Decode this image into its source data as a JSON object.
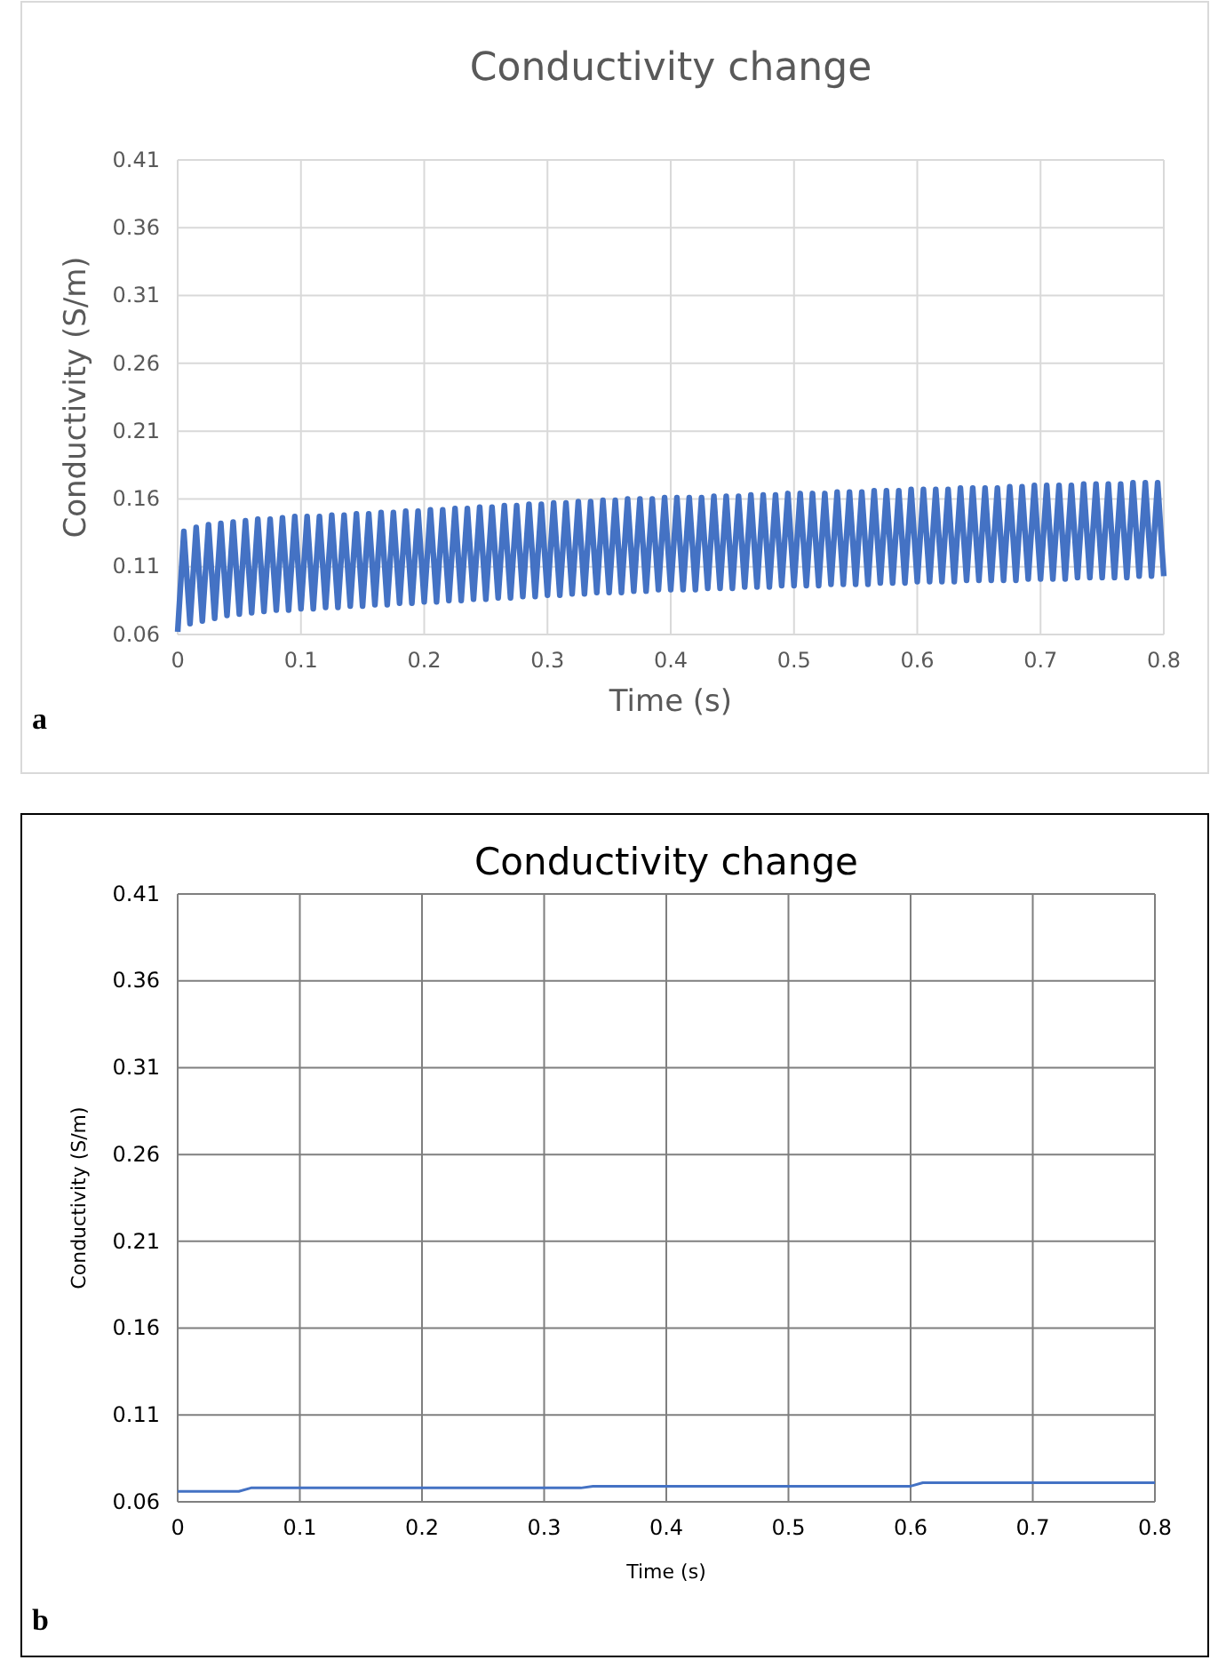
{
  "chart_data": [
    {
      "type": "line",
      "title": "Conductivity change",
      "xlabel": "Time (s)",
      "ylabel": "Conductivity (S/m)",
      "annotations": [
        "a"
      ],
      "xlim": [
        0,
        0.8
      ],
      "xticks": [
        0,
        0.1,
        0.2,
        0.3,
        0.4,
        0.5,
        0.6,
        0.7,
        0.8
      ],
      "ylim": [
        0.06,
        0.41
      ],
      "yticks": [
        0.06,
        0.11,
        0.16,
        0.21,
        0.26,
        0.31,
        0.36,
        0.41
      ],
      "grid": true,
      "series": [
        {
          "color": "#4472c4",
          "x": [
            0,
            0.005,
            0.01,
            0.015,
            0.02,
            0.025,
            0.03,
            0.035,
            0.04,
            0.045,
            0.05,
            0.055,
            0.06,
            0.065,
            0.07,
            0.075,
            0.08,
            0.085,
            0.09,
            0.095,
            0.1,
            0.105,
            0.11,
            0.115,
            0.12,
            0.125,
            0.13,
            0.135,
            0.14,
            0.145,
            0.15,
            0.155,
            0.16,
            0.165,
            0.17,
            0.175,
            0.18,
            0.185,
            0.19,
            0.195,
            0.2,
            0.205,
            0.21,
            0.215,
            0.22,
            0.225,
            0.23,
            0.235,
            0.24,
            0.245,
            0.25,
            0.255,
            0.26,
            0.265,
            0.27,
            0.275,
            0.28,
            0.285,
            0.29,
            0.295,
            0.3,
            0.305,
            0.31,
            0.315,
            0.32,
            0.325,
            0.33,
            0.335,
            0.34,
            0.345,
            0.35,
            0.355,
            0.36,
            0.365,
            0.37,
            0.375,
            0.38,
            0.385,
            0.39,
            0.395,
            0.4,
            0.405,
            0.41,
            0.415,
            0.42,
            0.425,
            0.43,
            0.435,
            0.44,
            0.445,
            0.45,
            0.455,
            0.46,
            0.465,
            0.47,
            0.475,
            0.48,
            0.485,
            0.49,
            0.495,
            0.5,
            0.505,
            0.51,
            0.515,
            0.52,
            0.525,
            0.53,
            0.535,
            0.54,
            0.545,
            0.55,
            0.555,
            0.56,
            0.565,
            0.57,
            0.575,
            0.58,
            0.585,
            0.59,
            0.595,
            0.6,
            0.605,
            0.61,
            0.615,
            0.62,
            0.625,
            0.63,
            0.635,
            0.64,
            0.645,
            0.65,
            0.655,
            0.66,
            0.665,
            0.67,
            0.675,
            0.68,
            0.685,
            0.69,
            0.695,
            0.7,
            0.705,
            0.71,
            0.715,
            0.72,
            0.725,
            0.73,
            0.735,
            0.74,
            0.745,
            0.75,
            0.755,
            0.76,
            0.765,
            0.77,
            0.775,
            0.78,
            0.785,
            0.79,
            0.795,
            0.8
          ],
          "values": [
            0.062,
            0.136,
            0.068,
            0.139,
            0.07,
            0.141,
            0.072,
            0.142,
            0.074,
            0.143,
            0.075,
            0.144,
            0.076,
            0.145,
            0.077,
            0.145,
            0.078,
            0.146,
            0.078,
            0.147,
            0.079,
            0.147,
            0.079,
            0.147,
            0.08,
            0.148,
            0.08,
            0.148,
            0.081,
            0.149,
            0.081,
            0.149,
            0.082,
            0.15,
            0.082,
            0.15,
            0.083,
            0.151,
            0.083,
            0.151,
            0.084,
            0.152,
            0.084,
            0.152,
            0.085,
            0.153,
            0.085,
            0.153,
            0.086,
            0.154,
            0.086,
            0.154,
            0.087,
            0.155,
            0.087,
            0.155,
            0.088,
            0.156,
            0.088,
            0.156,
            0.089,
            0.157,
            0.089,
            0.157,
            0.09,
            0.158,
            0.09,
            0.158,
            0.091,
            0.159,
            0.091,
            0.159,
            0.091,
            0.16,
            0.092,
            0.16,
            0.092,
            0.16,
            0.093,
            0.161,
            0.093,
            0.161,
            0.093,
            0.161,
            0.093,
            0.161,
            0.094,
            0.162,
            0.094,
            0.162,
            0.094,
            0.162,
            0.095,
            0.163,
            0.095,
            0.163,
            0.095,
            0.163,
            0.096,
            0.164,
            0.096,
            0.164,
            0.096,
            0.164,
            0.096,
            0.164,
            0.097,
            0.165,
            0.097,
            0.165,
            0.097,
            0.165,
            0.097,
            0.166,
            0.098,
            0.166,
            0.098,
            0.166,
            0.098,
            0.167,
            0.099,
            0.167,
            0.099,
            0.167,
            0.099,
            0.167,
            0.099,
            0.168,
            0.1,
            0.168,
            0.1,
            0.168,
            0.1,
            0.168,
            0.1,
            0.169,
            0.1,
            0.169,
            0.101,
            0.17,
            0.101,
            0.17,
            0.101,
            0.17,
            0.101,
            0.17,
            0.102,
            0.171,
            0.102,
            0.171,
            0.102,
            0.171,
            0.102,
            0.171,
            0.102,
            0.172,
            0.103,
            0.172,
            0.103,
            0.172,
            0.103
          ]
        }
      ]
    },
    {
      "type": "line",
      "title": "Conductivity change",
      "xlabel": "Time (s)",
      "ylabel": "Conductivity (S/m)",
      "annotations": [
        "b"
      ],
      "xlim": [
        0,
        0.8
      ],
      "xticks": [
        0,
        0.1,
        0.2,
        0.3,
        0.4,
        0.5,
        0.6,
        0.7,
        0.8
      ],
      "ylim": [
        0.06,
        0.41
      ],
      "yticks": [
        0.06,
        0.11,
        0.16,
        0.21,
        0.26,
        0.31,
        0.36,
        0.41
      ],
      "grid": true,
      "series": [
        {
          "color": "#4472c4",
          "x": [
            0,
            0.05,
            0.06,
            0.33,
            0.34,
            0.6,
            0.61,
            0.8
          ],
          "values": [
            0.066,
            0.066,
            0.068,
            0.068,
            0.069,
            0.069,
            0.071,
            0.071
          ]
        }
      ]
    }
  ]
}
